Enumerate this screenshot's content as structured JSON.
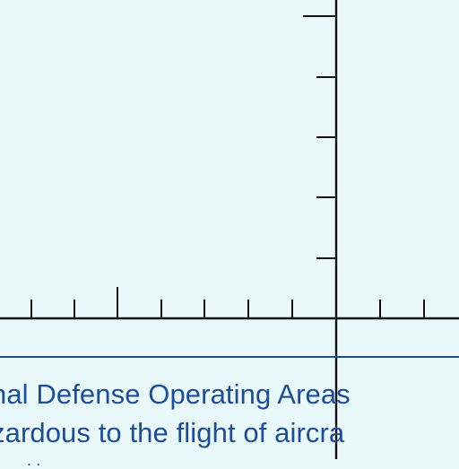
{
  "map": {
    "background_color": "#e9f8fb",
    "line_color": "#111111",
    "text_color": "#1f4d8f",
    "boundary_color": "#1f4d8f",
    "notes": [
      "nal Defense Operating Areas",
      "zardous to the flight of aircra",
      ". ."
    ]
  }
}
